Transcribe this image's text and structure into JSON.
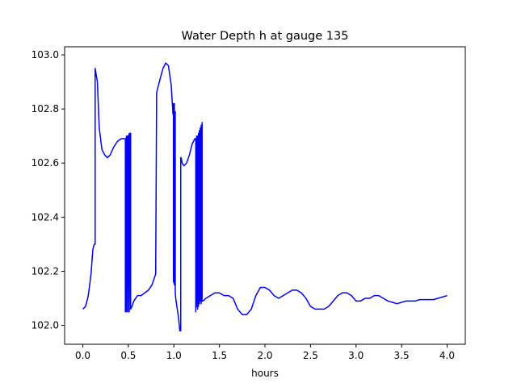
{
  "chart_data": {
    "type": "line",
    "title": "Water Depth h at gauge 135",
    "xlabel": "hours",
    "ylabel": "",
    "xlim": [
      -0.2,
      4.2
    ],
    "ylim": [
      101.93,
      103.03
    ],
    "xticks": [
      0.0,
      0.5,
      1.0,
      1.5,
      2.0,
      2.5,
      3.0,
      3.5,
      4.0
    ],
    "xtick_labels": [
      "0.0",
      "0.5",
      "1.0",
      "1.5",
      "2.0",
      "2.5",
      "3.0",
      "3.5",
      "4.0"
    ],
    "yticks": [
      102.0,
      102.2,
      102.4,
      102.6,
      102.8,
      103.0
    ],
    "ytick_labels": [
      "102.0",
      "102.2",
      "102.4",
      "102.6",
      "102.8",
      "103.0"
    ],
    "grid": false,
    "legend": "none",
    "series": [
      {
        "color": "#0000ff",
        "x": [
          0.0,
          0.03,
          0.06,
          0.09,
          0.11,
          0.125,
          0.135,
          0.135,
          0.16,
          0.18,
          0.21,
          0.24,
          0.27,
          0.3,
          0.34,
          0.38,
          0.42,
          0.46,
          0.467,
          0.467,
          0.475,
          0.48,
          0.48,
          0.49,
          0.495,
          0.495,
          0.505,
          0.51,
          0.51,
          0.52,
          0.525,
          0.525,
          0.54,
          0.56,
          0.6,
          0.64,
          0.68,
          0.72,
          0.76,
          0.8,
          0.81,
          0.81,
          0.84,
          0.88,
          0.91,
          0.94,
          0.97,
          0.99,
          0.995,
          0.995,
          1.005,
          1.005,
          1.015,
          1.015,
          1.02,
          1.05,
          1.065,
          1.075,
          1.075,
          1.08,
          1.09,
          1.11,
          1.14,
          1.17,
          1.2,
          1.23,
          1.24,
          1.24,
          1.25,
          1.25,
          1.26,
          1.26,
          1.27,
          1.27,
          1.28,
          1.28,
          1.29,
          1.29,
          1.3,
          1.3,
          1.31,
          1.31,
          1.32,
          1.32,
          1.35,
          1.4,
          1.45,
          1.5,
          1.55,
          1.6,
          1.65,
          1.7,
          1.75,
          1.8,
          1.85,
          1.9,
          1.95,
          2.0,
          2.05,
          2.1,
          2.15,
          2.2,
          2.25,
          2.3,
          2.35,
          2.4,
          2.45,
          2.5,
          2.55,
          2.6,
          2.65,
          2.7,
          2.75,
          2.8,
          2.85,
          2.9,
          2.95,
          3.0,
          3.05,
          3.1,
          3.15,
          3.2,
          3.25,
          3.3,
          3.35,
          3.4,
          3.45,
          3.5,
          3.55,
          3.6,
          3.65,
          3.7,
          3.75,
          3.8,
          3.85,
          3.9,
          3.95,
          4.0
        ],
        "y": [
          102.06,
          102.07,
          102.11,
          102.19,
          102.28,
          102.3,
          102.3,
          102.95,
          102.9,
          102.73,
          102.65,
          102.63,
          102.62,
          102.63,
          102.66,
          102.68,
          102.69,
          102.69,
          102.69,
          102.05,
          102.69,
          102.7,
          102.05,
          102.7,
          102.7,
          102.05,
          102.7,
          102.71,
          102.05,
          102.71,
          102.71,
          102.06,
          102.07,
          102.09,
          102.11,
          102.11,
          102.12,
          102.13,
          102.15,
          102.19,
          102.84,
          102.86,
          102.9,
          102.95,
          102.97,
          102.96,
          102.89,
          102.78,
          102.82,
          102.16,
          102.82,
          102.15,
          102.79,
          102.12,
          102.1,
          102.03,
          101.98,
          101.98,
          102.62,
          102.62,
          102.6,
          102.59,
          102.6,
          102.63,
          102.67,
          102.69,
          102.69,
          102.05,
          102.7,
          102.07,
          102.7,
          102.06,
          102.71,
          102.07,
          102.72,
          102.08,
          102.73,
          102.09,
          102.74,
          102.08,
          102.75,
          102.09,
          102.09,
          102.09,
          102.1,
          102.11,
          102.12,
          102.12,
          102.11,
          102.11,
          102.1,
          102.06,
          102.04,
          102.04,
          102.06,
          102.11,
          102.14,
          102.14,
          102.13,
          102.11,
          102.1,
          102.11,
          102.12,
          102.13,
          102.13,
          102.12,
          102.1,
          102.07,
          102.06,
          102.06,
          102.06,
          102.07,
          102.09,
          102.11,
          102.12,
          102.12,
          102.11,
          102.09,
          102.09,
          102.1,
          102.1,
          102.11,
          102.11,
          102.1,
          102.09,
          102.085,
          102.08,
          102.085,
          102.09,
          102.09,
          102.09,
          102.095,
          102.095,
          102.095,
          102.095,
          102.1,
          102.105,
          102.11
        ]
      }
    ]
  }
}
